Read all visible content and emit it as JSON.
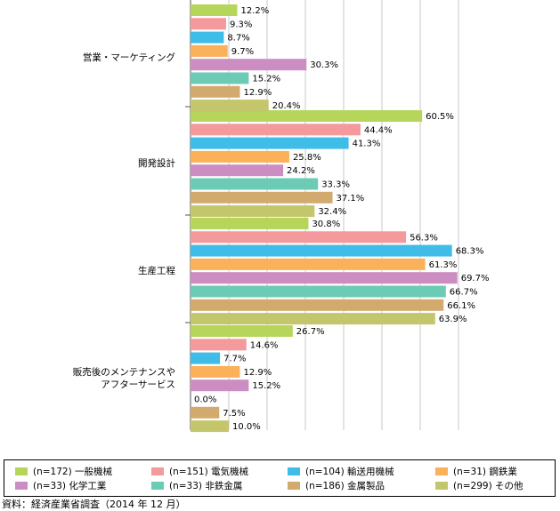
{
  "chart_data": {
    "type": "bar",
    "orientation": "horizontal",
    "categories": [
      "営業・マーケティング",
      "開発設計",
      "生産工程",
      "販売後のメンテナンスや\nアフターサービス"
    ],
    "series": [
      {
        "name": "(n=172) 一般機械",
        "color": "#b5d65a",
        "values": [
          12.2,
          60.5,
          30.8,
          26.7
        ]
      },
      {
        "name": "(n=151) 電気機械",
        "color": "#f4999c",
        "values": [
          9.3,
          44.4,
          56.3,
          14.6
        ]
      },
      {
        "name": "(n=104) 輸送用機械",
        "color": "#3fbde8",
        "values": [
          8.7,
          41.3,
          68.3,
          7.7
        ]
      },
      {
        "name": "(n=31) 鋼鉄業",
        "color": "#fbb05a",
        "values": [
          9.7,
          25.8,
          61.3,
          12.9
        ]
      },
      {
        "name": "(n=33) 化学工業",
        "color": "#cc8ec2",
        "values": [
          30.3,
          24.2,
          69.7,
          15.2
        ]
      },
      {
        "name": "(n=33) 非鉄金属",
        "color": "#6ccbb4",
        "values": [
          15.2,
          33.3,
          66.7,
          0.0
        ]
      },
      {
        "name": "(n=186) 金属製品",
        "color": "#d2aa6e",
        "values": [
          12.9,
          37.1,
          66.1,
          7.5
        ]
      },
      {
        "name": "(n=299) その他",
        "color": "#c4c66c",
        "values": [
          20.4,
          32.4,
          63.9,
          10.0
        ]
      }
    ],
    "value_suffix": "%",
    "xlim": [
      0,
      70
    ],
    "grid": true,
    "legend_position": "bottom"
  },
  "source": "資料：経済産業省調査（2014 年 12 月）"
}
